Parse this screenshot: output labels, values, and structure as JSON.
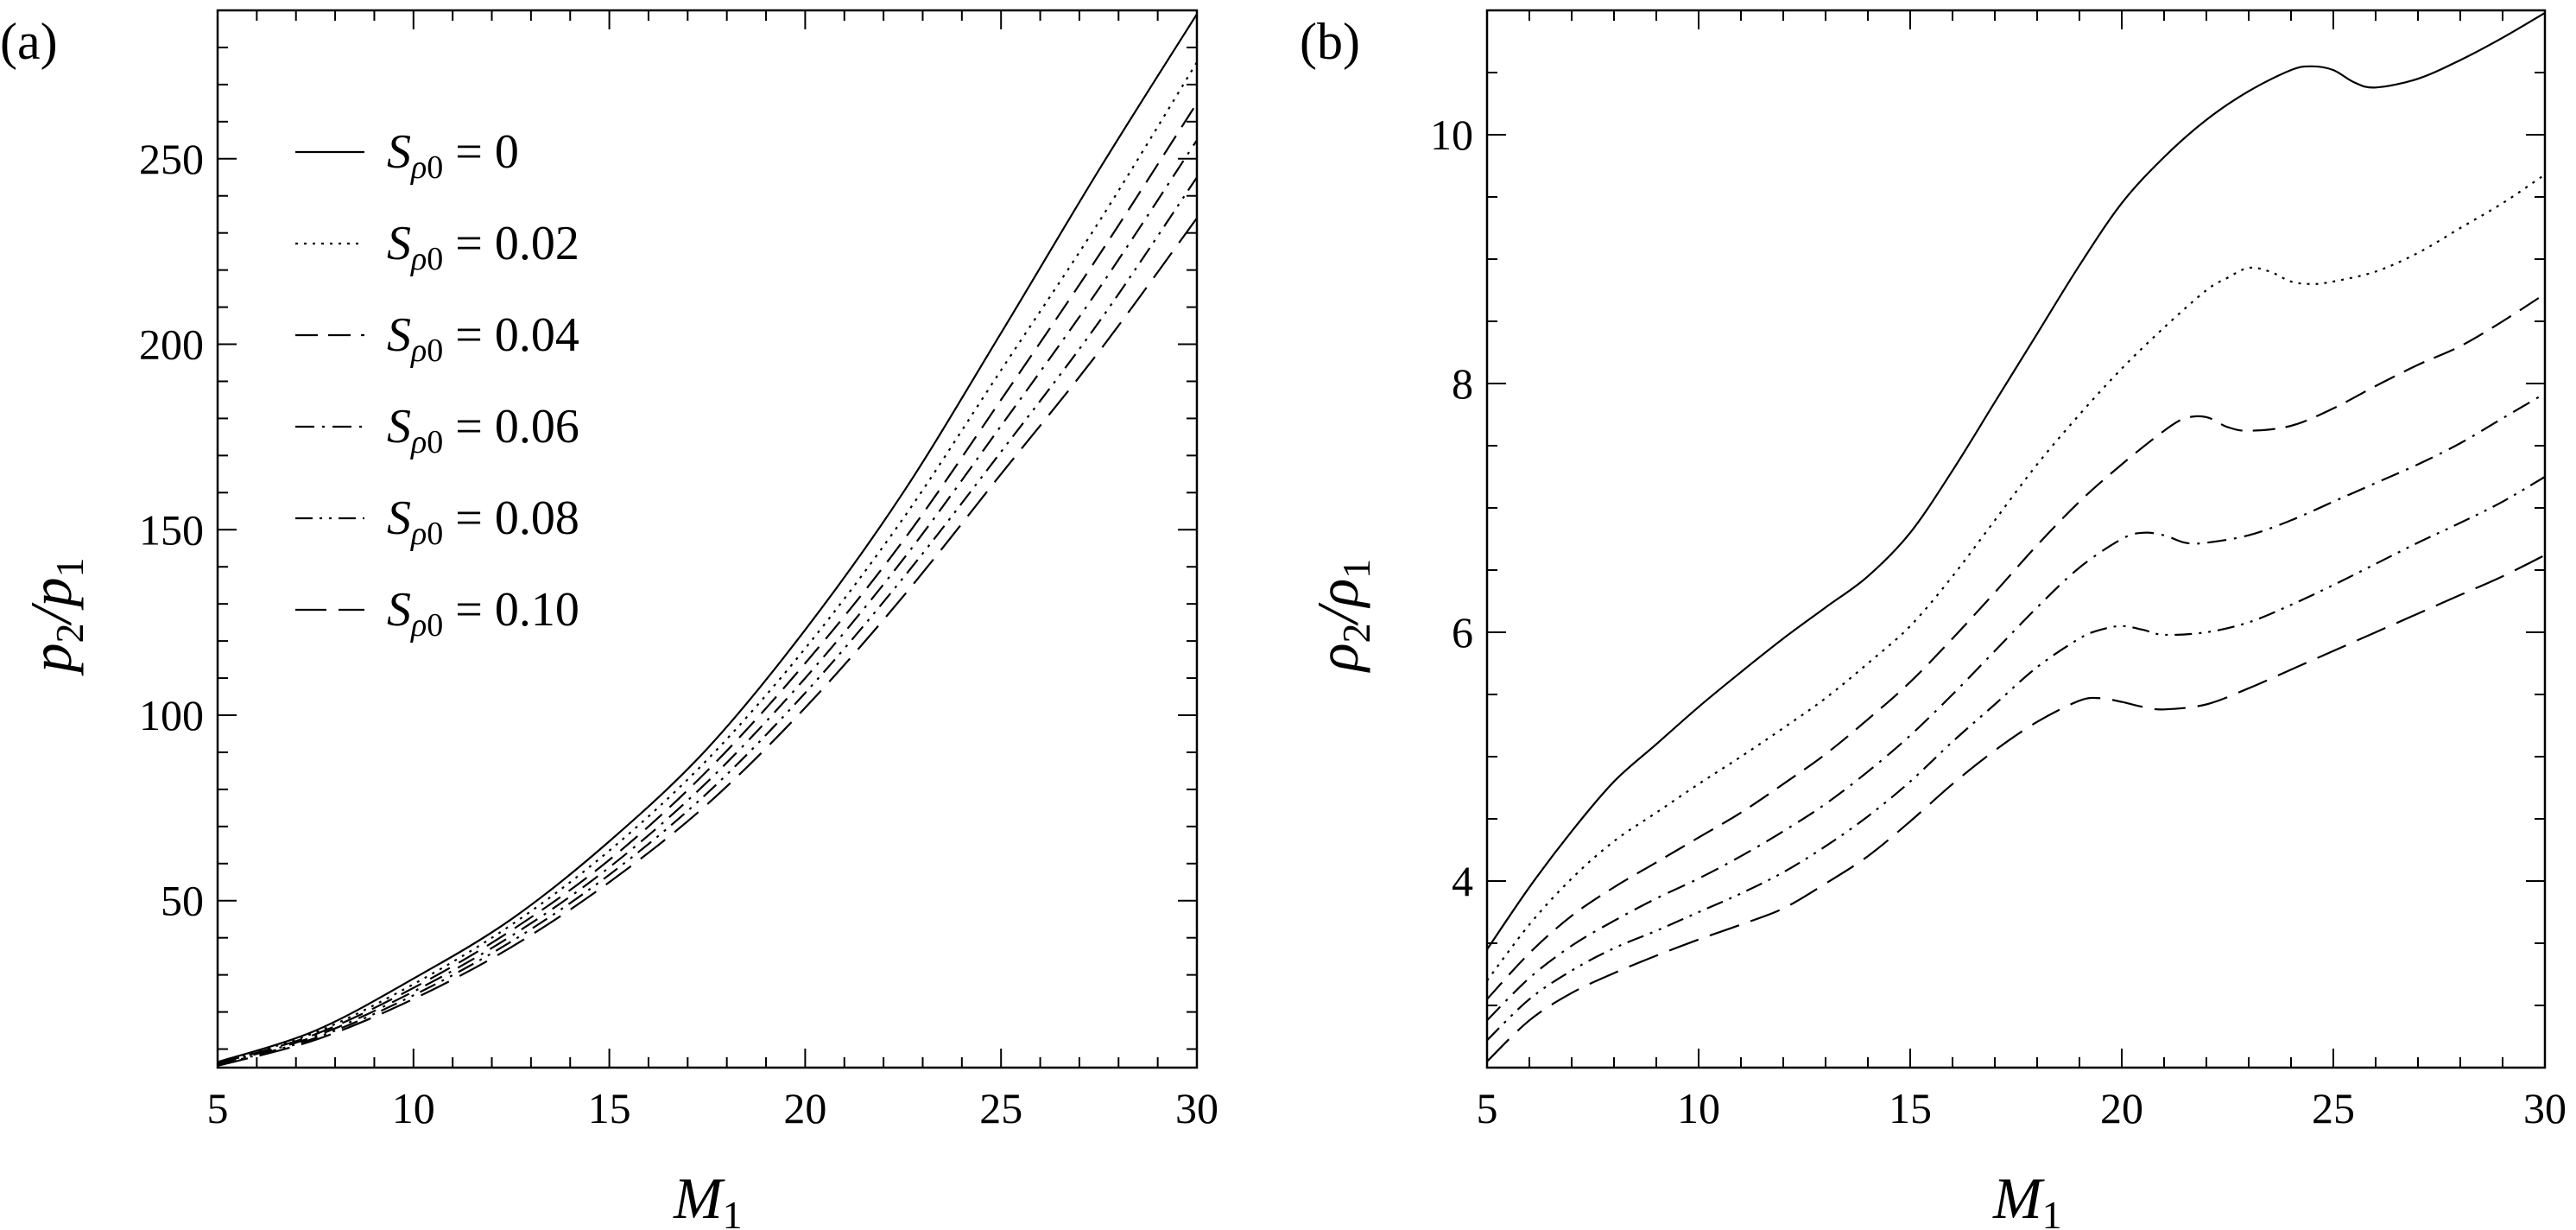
{
  "chart_data": [
    {
      "type": "line",
      "panel_label": "(a)",
      "xlabel": "M",
      "xlabel_sub": "1",
      "ylabel": "p2/p1",
      "xlim": [
        5,
        30
      ],
      "ylim": [
        5,
        290
      ],
      "xticks": [
        5,
        10,
        15,
        20,
        25,
        30
      ],
      "yticks": [
        50,
        100,
        150,
        200,
        250
      ],
      "legend_position": "upper-left",
      "series": [
        {
          "name": "S_ρ0 = 0",
          "value_label": "0",
          "dash": "solid",
          "x": [
            5,
            7.5,
            10,
            12.5,
            15,
            17.5,
            20,
            22.5,
            25,
            27.5,
            30
          ],
          "y": [
            6.5,
            15,
            29,
            45,
            66,
            91,
            123,
            160,
            203,
            247,
            289
          ]
        },
        {
          "name": "S_ρ0 = 0.02",
          "value_label": "0.02",
          "dash": "dotted",
          "x": [
            5,
            7.5,
            10,
            12.5,
            15,
            17.5,
            20,
            22.5,
            25,
            27.5,
            30
          ],
          "y": [
            6.3,
            14.5,
            27.5,
            43.5,
            63.5,
            88,
            118,
            153,
            193,
            233,
            276
          ]
        },
        {
          "name": "S_ρ0 = 0.04",
          "value_label": "0.04",
          "dash": "dashed",
          "x": [
            5,
            7.5,
            10,
            12.5,
            15,
            17.5,
            20,
            22.5,
            25,
            27.5,
            30
          ],
          "y": [
            6.1,
            14,
            26.5,
            42,
            61,
            85,
            114,
            147,
            185,
            224,
            265
          ]
        },
        {
          "name": "S_ρ0 = 0.06",
          "value_label": "0.06",
          "dash": "dash-dot",
          "x": [
            5,
            7.5,
            10,
            12.5,
            15,
            17.5,
            20,
            22.5,
            25,
            27.5,
            30
          ],
          "y": [
            5.9,
            13.5,
            25.5,
            40.5,
            59,
            82,
            110,
            142,
            178,
            215,
            255
          ]
        },
        {
          "name": "S_ρ0 = 0.08",
          "value_label": "0.08",
          "dash": "dash-dot-dot",
          "x": [
            5,
            7.5,
            10,
            12.5,
            15,
            17.5,
            20,
            22.5,
            25,
            27.5,
            30
          ],
          "y": [
            5.7,
            13,
            24.5,
            39,
            57,
            79,
            106,
            137,
            171,
            206,
            245
          ]
        },
        {
          "name": "S_ρ0 = 0.10",
          "value_label": "0.10",
          "dash": "long-dash",
          "x": [
            5,
            7.5,
            10,
            12.5,
            15,
            17.5,
            20,
            22.5,
            25,
            27.5,
            30
          ],
          "y": [
            5.5,
            12.5,
            23.5,
            37.5,
            55,
            76,
            102,
            132,
            165,
            198,
            234
          ]
        }
      ]
    },
    {
      "type": "line",
      "panel_label": "(b)",
      "xlabel": "M",
      "xlabel_sub": "1",
      "ylabel": "ρ2/ρ1",
      "xlim": [
        5,
        30
      ],
      "ylim": [
        2.5,
        11
      ],
      "xticks": [
        5,
        10,
        15,
        20,
        25,
        30
      ],
      "yticks": [
        4,
        6,
        8,
        10
      ],
      "series": [
        {
          "name": "S_ρ0 = 0",
          "dash": "solid",
          "x": [
            5,
            6,
            7,
            8,
            9,
            10,
            11,
            12,
            13,
            14,
            15,
            16,
            17,
            18,
            19,
            20,
            21,
            22,
            23,
            24,
            24.5,
            25,
            25.5,
            26,
            27,
            28,
            29,
            30
          ],
          "y": [
            3.45,
            3.95,
            4.4,
            4.8,
            5.1,
            5.4,
            5.68,
            5.95,
            6.2,
            6.45,
            6.8,
            7.3,
            7.85,
            8.4,
            8.95,
            9.45,
            9.82,
            10.12,
            10.35,
            10.52,
            10.55,
            10.52,
            10.42,
            10.38,
            10.45,
            10.6,
            10.78,
            10.98
          ]
        },
        {
          "name": "S_ρ0 = 0.02",
          "dash": "dotted",
          "x": [
            5,
            6,
            7,
            8,
            9,
            10,
            11,
            12,
            13,
            14,
            15,
            16,
            17,
            18,
            19,
            20,
            21,
            22,
            22.5,
            23,
            23.5,
            24,
            24.5,
            25,
            26,
            27,
            28,
            29,
            30
          ],
          "y": [
            3.2,
            3.65,
            4.02,
            4.32,
            4.55,
            4.78,
            5.0,
            5.23,
            5.47,
            5.75,
            6.05,
            6.45,
            6.9,
            7.35,
            7.75,
            8.12,
            8.45,
            8.75,
            8.85,
            8.93,
            8.9,
            8.82,
            8.8,
            8.82,
            8.9,
            9.05,
            9.25,
            9.45,
            9.68
          ]
        },
        {
          "name": "S_ρ0 = 0.04",
          "dash": "dashed",
          "x": [
            5,
            6,
            7,
            8,
            9,
            10,
            11,
            12,
            13,
            14,
            15,
            16,
            17,
            18,
            19,
            20,
            21,
            21.5,
            22,
            22.5,
            23,
            24,
            25,
            26,
            27,
            28,
            29,
            30
          ],
          "y": [
            3.05,
            3.42,
            3.72,
            3.95,
            4.15,
            4.35,
            4.55,
            4.78,
            5.02,
            5.3,
            5.6,
            5.95,
            6.32,
            6.7,
            7.05,
            7.35,
            7.62,
            7.72,
            7.73,
            7.65,
            7.62,
            7.66,
            7.8,
            7.98,
            8.15,
            8.3,
            8.5,
            8.72
          ]
        },
        {
          "name": "S_ρ0 = 0.06",
          "dash": "dash-dot",
          "x": [
            5,
            6,
            7,
            8,
            9,
            10,
            11,
            12,
            13,
            14,
            15,
            16,
            17,
            18,
            19,
            20,
            20.5,
            21,
            21.5,
            22,
            23,
            24,
            25,
            26,
            27,
            28,
            29,
            30
          ],
          "y": [
            2.88,
            3.22,
            3.48,
            3.68,
            3.86,
            4.02,
            4.2,
            4.4,
            4.62,
            4.88,
            5.17,
            5.5,
            5.85,
            6.2,
            6.52,
            6.75,
            6.8,
            6.78,
            6.72,
            6.72,
            6.78,
            6.9,
            7.05,
            7.2,
            7.35,
            7.52,
            7.72,
            7.92
          ]
        },
        {
          "name": "S_ρ0 = 0.08",
          "dash": "dash-dot-dot",
          "x": [
            5,
            6,
            7,
            8,
            9,
            10,
            11,
            12,
            13,
            14,
            15,
            16,
            17,
            18,
            19,
            19.5,
            20,
            20.5,
            21,
            22,
            23,
            24,
            25,
            26,
            27,
            28,
            29,
            30
          ],
          "y": [
            2.72,
            3.05,
            3.28,
            3.46,
            3.6,
            3.75,
            3.9,
            4.07,
            4.28,
            4.52,
            4.8,
            5.12,
            5.42,
            5.72,
            5.95,
            6.02,
            6.05,
            6.02,
            5.98,
            6.0,
            6.08,
            6.22,
            6.38,
            6.55,
            6.72,
            6.88,
            7.05,
            7.25
          ]
        },
        {
          "name": "S_ρ0 = 0.10",
          "dash": "long-dash",
          "x": [
            5,
            6,
            7,
            8,
            9,
            10,
            11,
            12,
            13,
            14,
            15,
            16,
            17,
            18,
            19,
            19.5,
            20,
            20.5,
            21,
            22,
            23,
            24,
            25,
            26,
            27,
            28,
            29,
            30
          ],
          "y": [
            2.55,
            2.88,
            3.1,
            3.26,
            3.4,
            3.53,
            3.65,
            3.78,
            3.98,
            4.2,
            4.48,
            4.78,
            5.05,
            5.28,
            5.45,
            5.47,
            5.44,
            5.4,
            5.38,
            5.42,
            5.55,
            5.7,
            5.85,
            6.0,
            6.15,
            6.3,
            6.45,
            6.62
          ]
        }
      ]
    }
  ]
}
